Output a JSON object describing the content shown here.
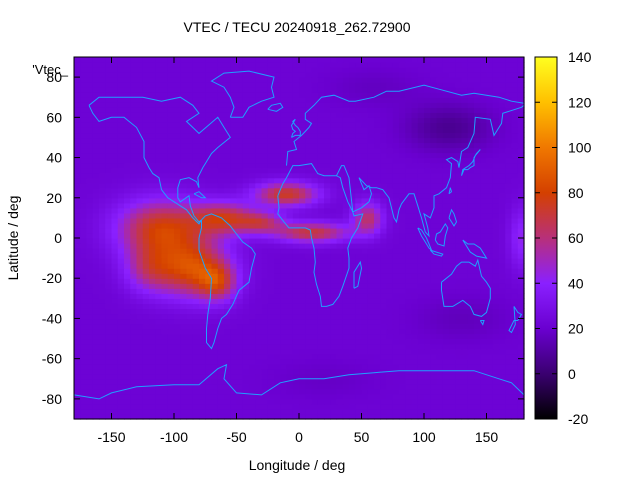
{
  "chart_data": {
    "type": "heatmap",
    "title": "VTEC / TECU 20240918_262.72900",
    "xlabel": "Longitude / deg",
    "ylabel": "Latitude / deg",
    "legend_entry": "'Vtec_",
    "xlim": [
      -180,
      180
    ],
    "ylim": [
      -90,
      90
    ],
    "x_ticks": [
      -150,
      -100,
      -50,
      0,
      50,
      100,
      150
    ],
    "y_ticks": [
      -80,
      -60,
      -40,
      -20,
      0,
      20,
      40,
      60,
      80
    ],
    "colorbar": {
      "range": [
        -20,
        140
      ],
      "ticks": [
        -20,
        0,
        20,
        40,
        60,
        80,
        100,
        120,
        140
      ],
      "palette": [
        "#000000",
        "#3a0070",
        "#6a00d0",
        "#8a20ff",
        "#b8307a",
        "#d44000",
        "#f07800",
        "#ffc000",
        "#ffff20"
      ]
    },
    "background_level": 22,
    "coastline_color": "#1fa0ff",
    "features": [
      {
        "lon": -110,
        "lat": 5,
        "sx": 35,
        "sy": 14,
        "value": 55
      },
      {
        "lon": -85,
        "lat": -15,
        "sx": 28,
        "sy": 14,
        "value": 58
      },
      {
        "lon": -65,
        "lat": -22,
        "sx": 15,
        "sy": 9,
        "value": 38
      },
      {
        "lon": -60,
        "lat": 10,
        "sx": 25,
        "sy": 8,
        "value": 48
      },
      {
        "lon": -120,
        "lat": -15,
        "sx": 20,
        "sy": 12,
        "value": 30
      },
      {
        "lon": -10,
        "lat": 22,
        "sx": 25,
        "sy": 6,
        "value": 52
      },
      {
        "lon": 10,
        "lat": 3,
        "sx": 30,
        "sy": 5,
        "value": 48
      },
      {
        "lon": 55,
        "lat": 10,
        "sx": 12,
        "sy": 8,
        "value": 40
      },
      {
        "lon": -30,
        "lat": 8,
        "sx": 18,
        "sy": 5,
        "value": 35
      },
      {
        "lon": 178,
        "lat": 0,
        "sx": 10,
        "sy": 15,
        "value": 20
      },
      {
        "lon": 120,
        "lat": 55,
        "sx": 35,
        "sy": 12,
        "value": -15
      },
      {
        "lon": 130,
        "lat": -40,
        "sx": 40,
        "sy": 12,
        "value": -6
      },
      {
        "lon": 20,
        "lat": -70,
        "sx": 45,
        "sy": 10,
        "value": -4
      },
      {
        "lon": 60,
        "lat": 75,
        "sx": 40,
        "sy": 10,
        "value": -5
      }
    ]
  }
}
